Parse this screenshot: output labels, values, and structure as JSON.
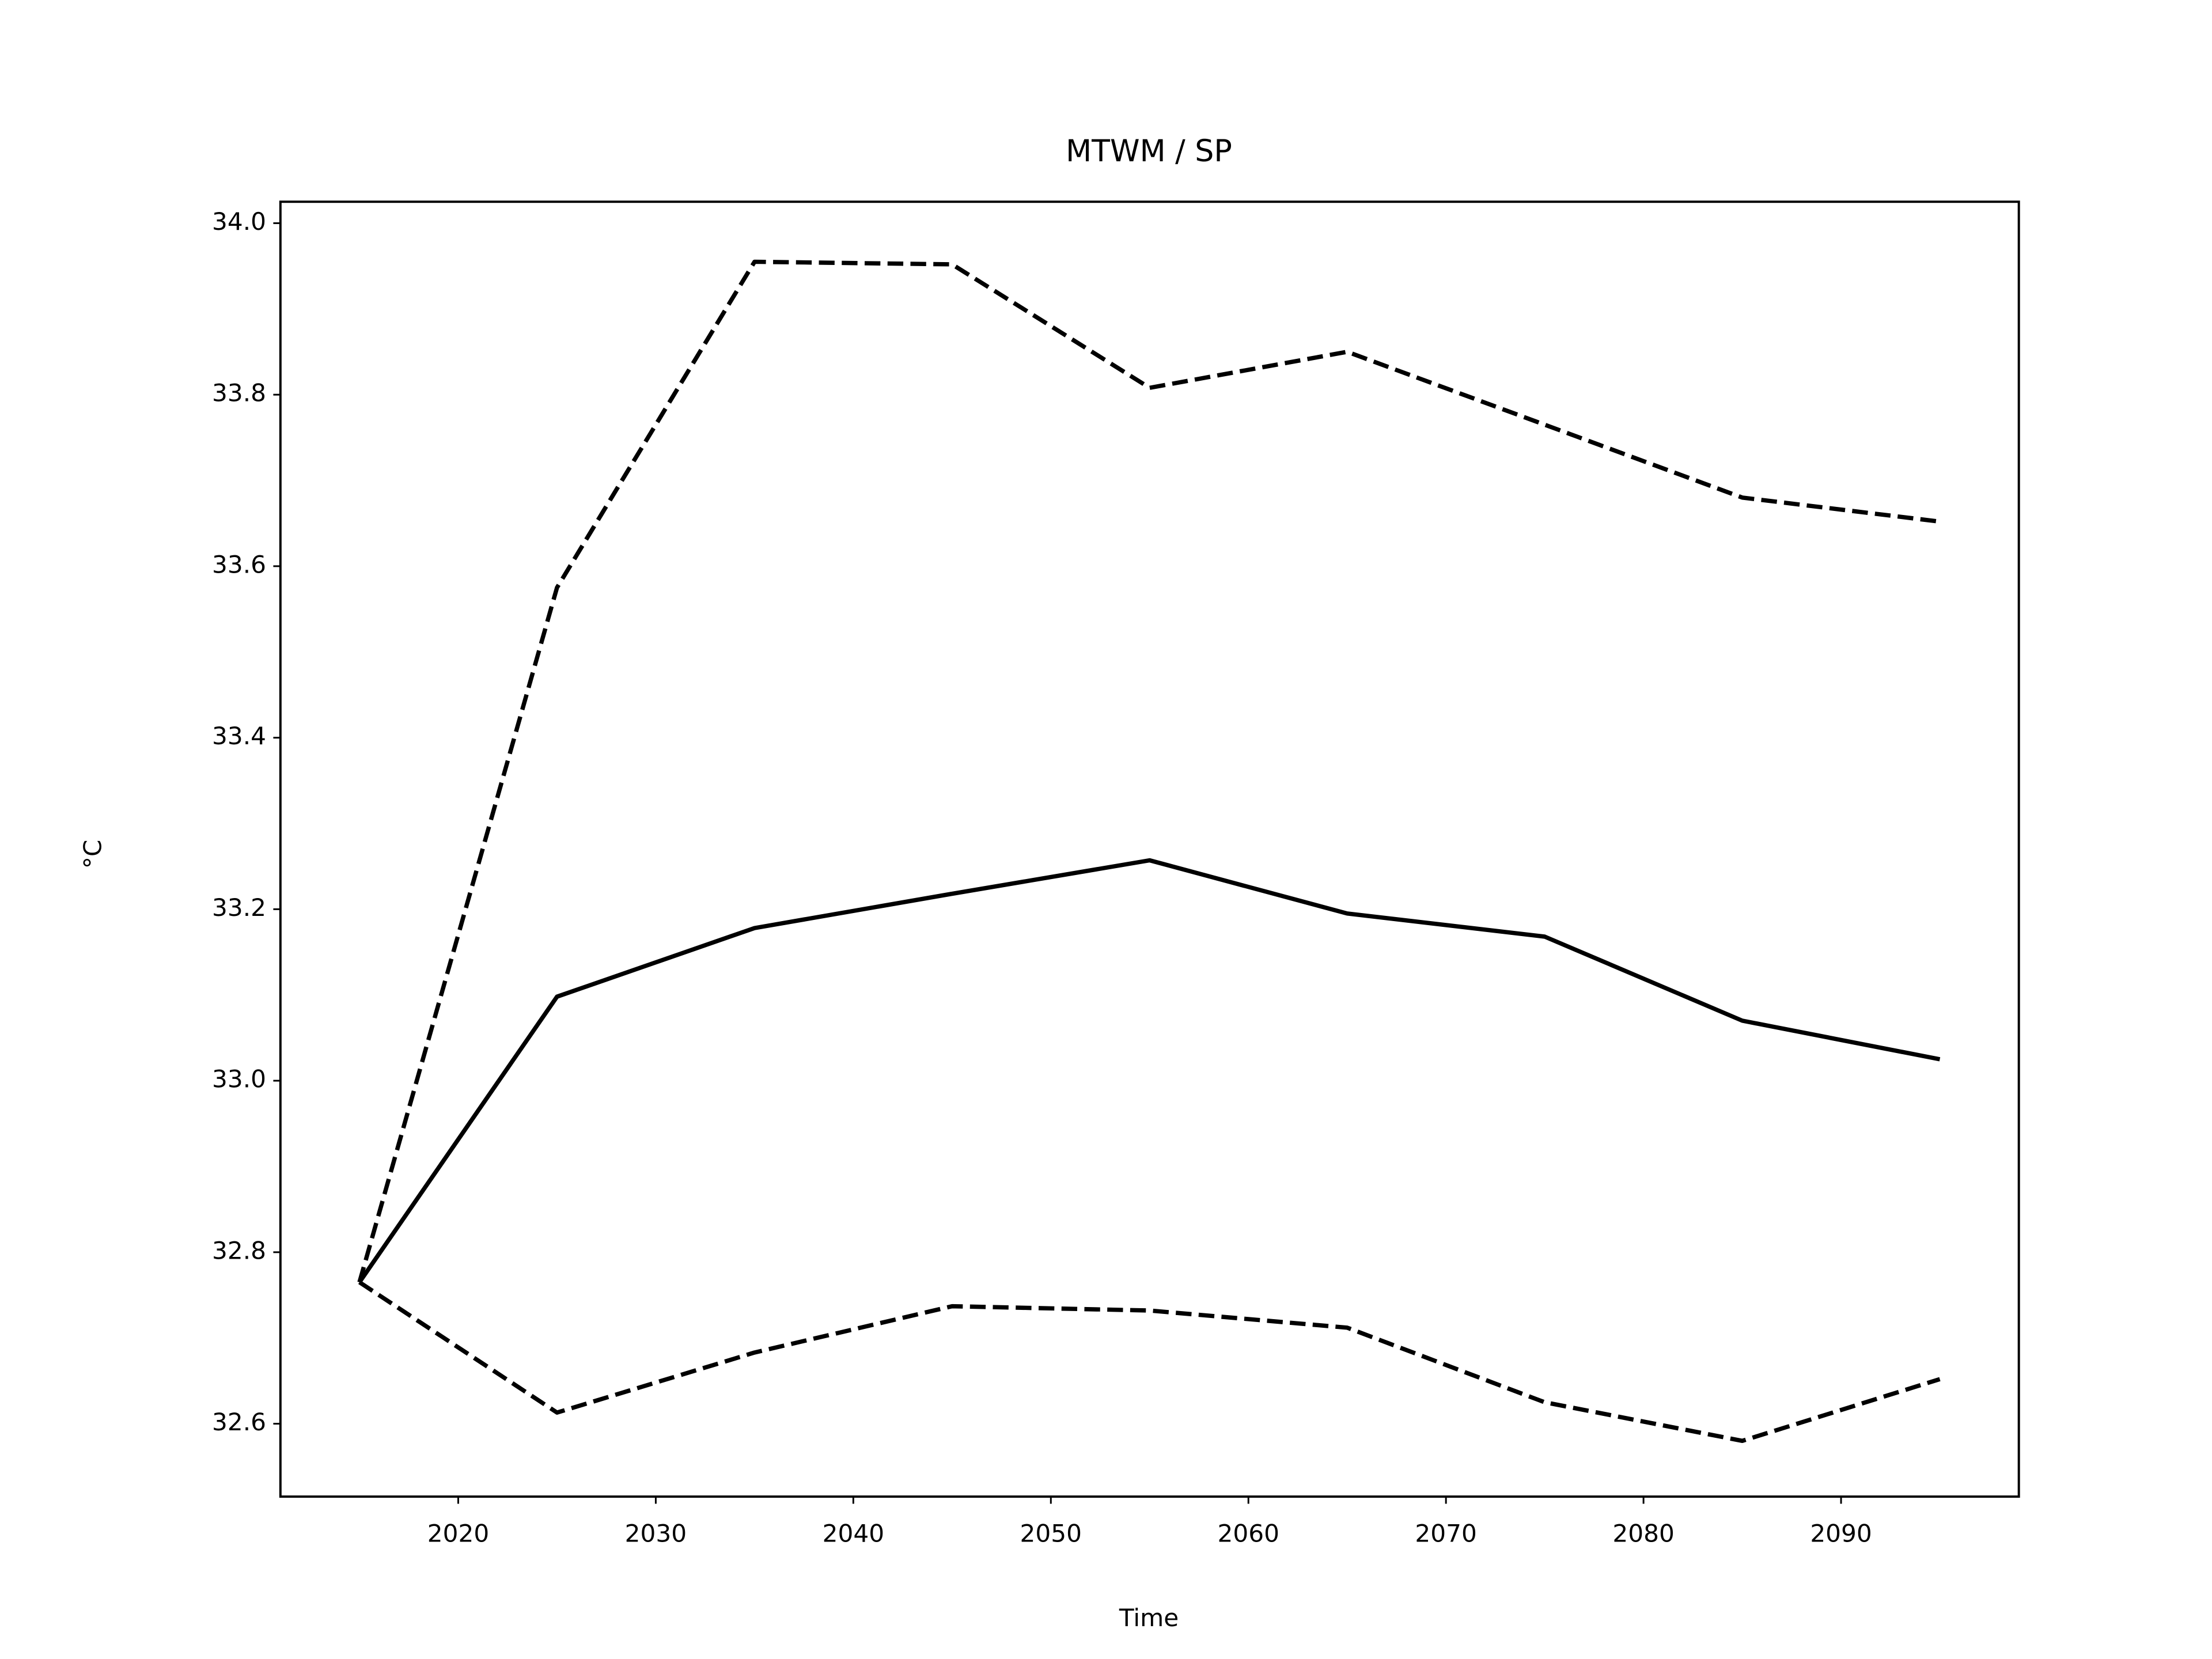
{
  "chart_data": {
    "type": "line",
    "title": "MTWM / SP",
    "x_label": "Time",
    "y_label": "°C",
    "x": [
      2015,
      2025,
      2035,
      2045,
      2055,
      2065,
      2075,
      2085,
      2095
    ],
    "series": [
      {
        "color": "#000000",
        "linestyle": "solid",
        "values": [
          32.765,
          33.098,
          33.178,
          33.218,
          33.257,
          33.195,
          33.168,
          33.07,
          33.025
        ]
      },
      {
        "color": "#000000",
        "linestyle": "dashed",
        "values": [
          32.765,
          33.575,
          33.955,
          33.952,
          33.808,
          33.85,
          33.765,
          33.68,
          33.652
        ]
      },
      {
        "color": "#000000",
        "linestyle": "dashed",
        "values": [
          32.765,
          32.613,
          32.683,
          32.737,
          32.732,
          32.712,
          32.625,
          32.58,
          32.652
        ]
      }
    ],
    "xlim": [
      2011,
      2099
    ],
    "xticks": [
      2020,
      2030,
      2040,
      2050,
      2060,
      2070,
      2080,
      2090
    ],
    "ylim": [
      32.515,
      34.025
    ],
    "yticks": [
      32.6,
      32.8,
      {
        "value": 33.0,
        "label": "33.0"
      },
      33.2,
      33.4,
      33.6,
      33.8,
      {
        "value": 34.0,
        "label": "34.0"
      }
    ],
    "grid": false
  }
}
